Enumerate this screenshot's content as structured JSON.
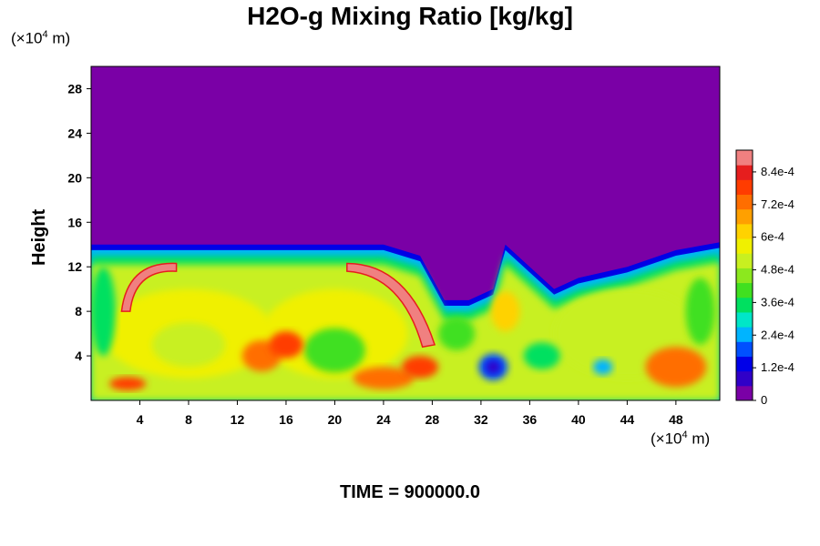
{
  "chart_data": {
    "type": "heatmap",
    "title": "H2O-g Mixing Ratio [kg/kg]",
    "ylabel": "Height",
    "x_unit": {
      "prefix": "(×10",
      "exp": "4",
      "suffix": " m)"
    },
    "y_unit": {
      "prefix": "(×10",
      "exp": "4",
      "suffix": " m)"
    },
    "xlim": [
      0,
      51.6
    ],
    "ylim": [
      0,
      30
    ],
    "x_ticks": [
      4,
      8,
      12,
      16,
      20,
      24,
      28,
      32,
      36,
      40,
      44,
      48
    ],
    "y_ticks": [
      4,
      8,
      12,
      16,
      20,
      24,
      28
    ],
    "colorbar": {
      "range": [
        0,
        0.00092
      ],
      "tick_values": [
        0,
        0.00012,
        0.00024,
        0.00036,
        0.00048,
        0.0006,
        0.00072,
        0.00084
      ],
      "tick_labels": [
        "0",
        "1.2e-4",
        "2.4e-4",
        "3.6e-4",
        "4.8e-4",
        "6e-4",
        "7.2e-4",
        "8.4e-4"
      ],
      "colors": [
        "#7a00a6",
        "#3000c8",
        "#0000e8",
        "#0050ff",
        "#00b4ff",
        "#00e6c8",
        "#00e060",
        "#40e020",
        "#8ce81e",
        "#c8f020",
        "#f0f000",
        "#ffd200",
        "#ffa000",
        "#ff6e00",
        "#ff3c00",
        "#e61e1e",
        "#f08080"
      ]
    },
    "boundary_layer_top_height": 14,
    "time_label": "TIME = 900000.0"
  }
}
